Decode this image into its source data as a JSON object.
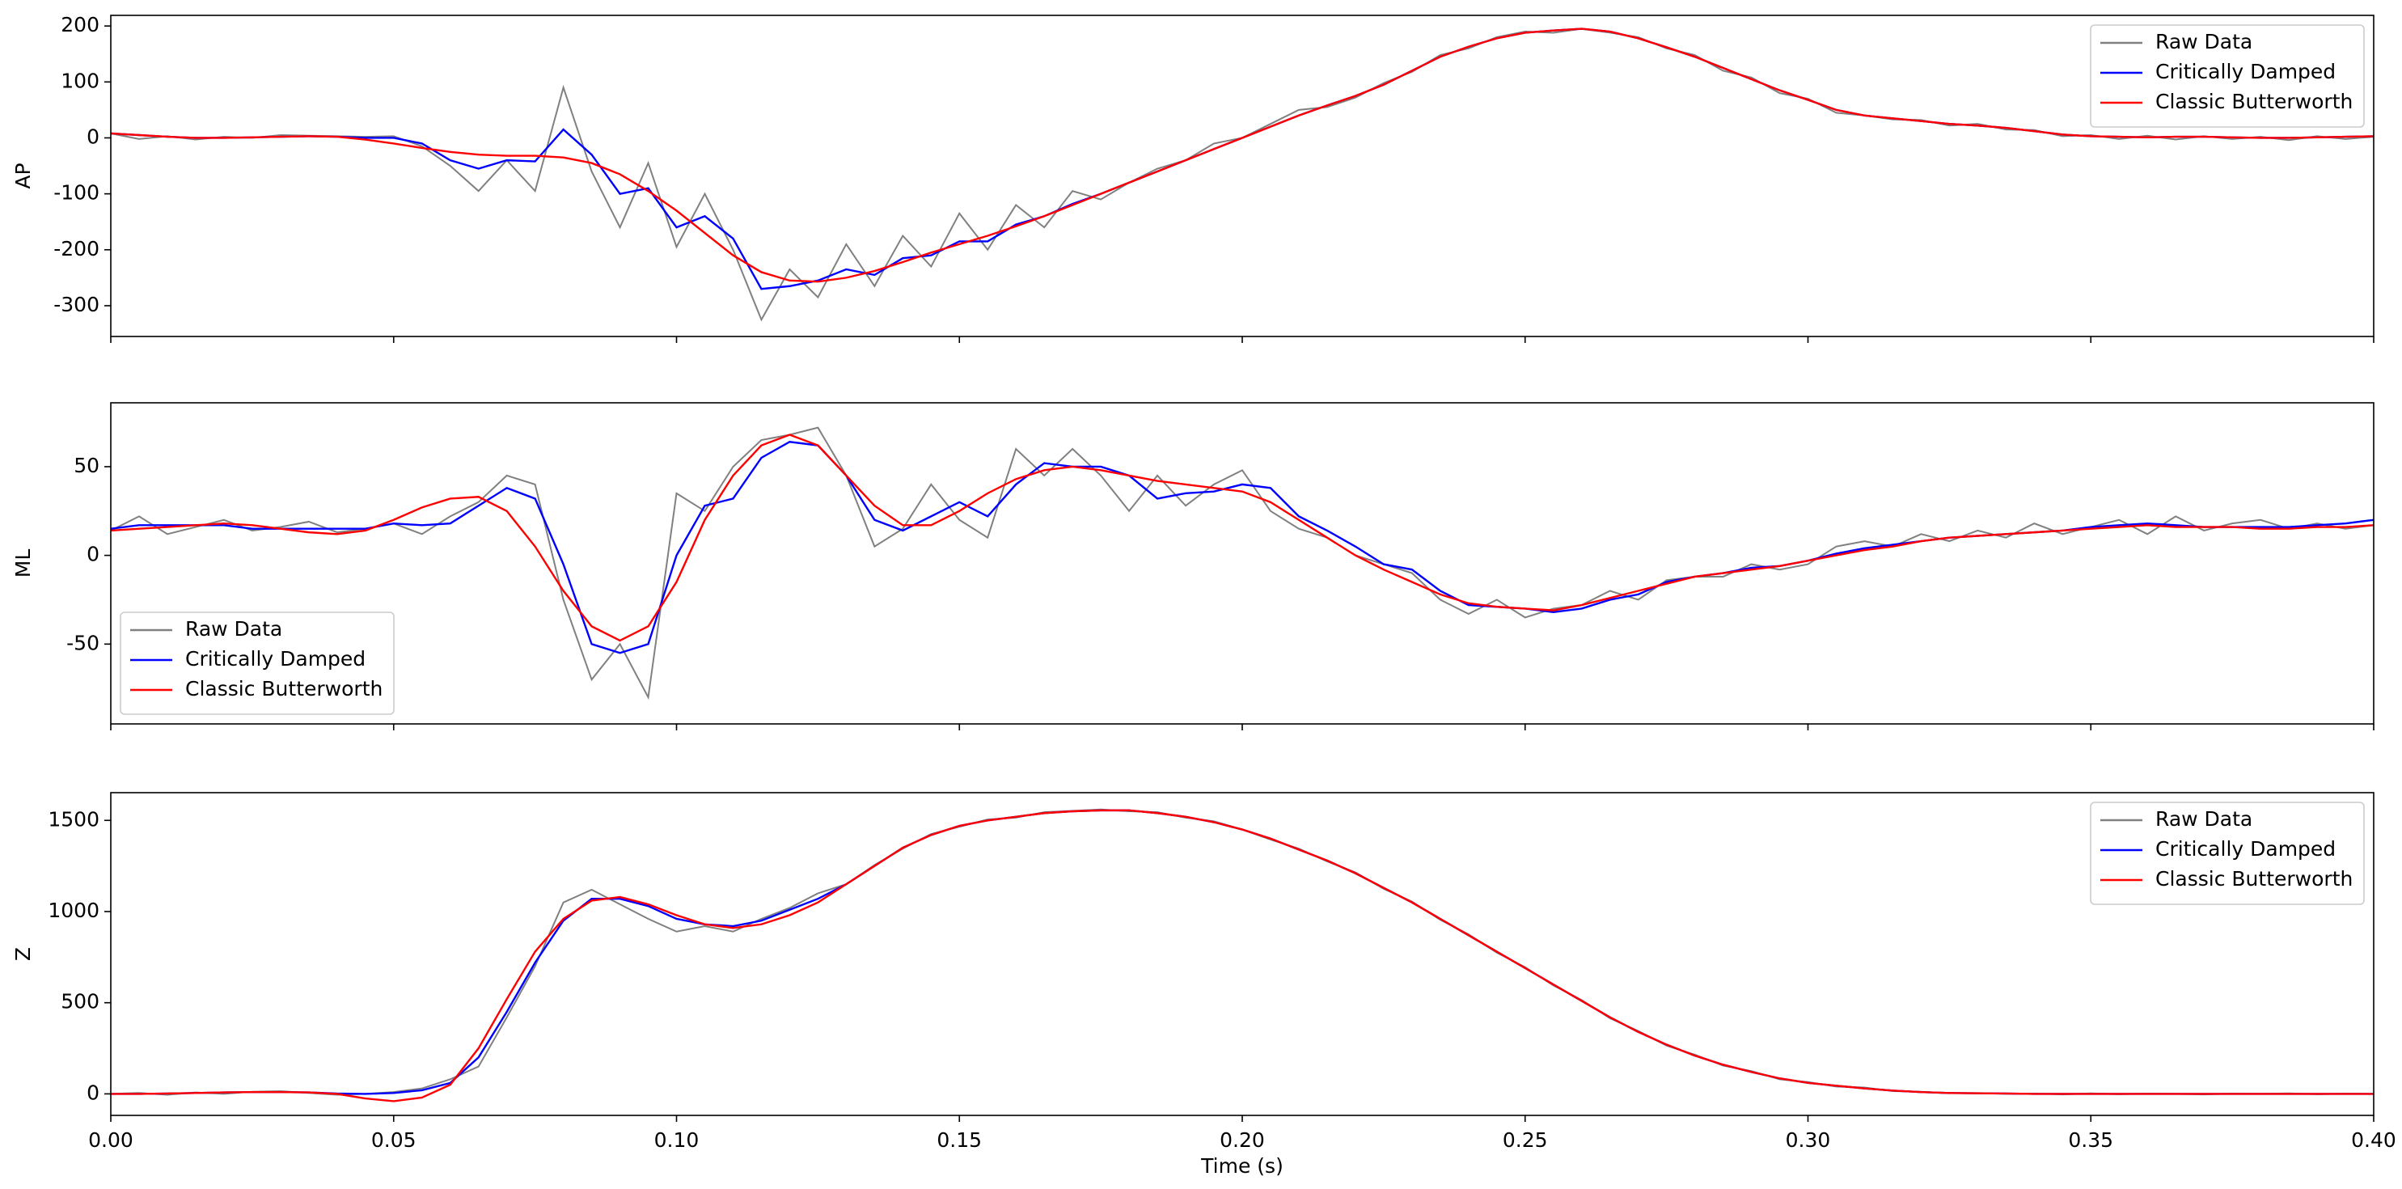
{
  "chart_data": [
    {
      "type": "line",
      "ylabel": "AP",
      "legend": "upper right",
      "xlim": [
        0,
        0.4
      ],
      "ylim": [
        -355,
        219
      ],
      "xticks": [
        0,
        0.05,
        0.1,
        0.15,
        0.2,
        0.25,
        0.3,
        0.35,
        0.4
      ],
      "yticks": [
        -300,
        -200,
        -100,
        0,
        100,
        200
      ],
      "x": [
        0,
        0.005,
        0.01,
        0.015,
        0.02,
        0.025,
        0.03,
        0.035,
        0.04,
        0.045,
        0.05,
        0.055,
        0.06,
        0.065,
        0.07,
        0.075,
        0.08,
        0.085,
        0.09,
        0.095,
        0.1,
        0.105,
        0.11,
        0.115,
        0.12,
        0.125,
        0.13,
        0.135,
        0.14,
        0.145,
        0.15,
        0.155,
        0.16,
        0.165,
        0.17,
        0.175,
        0.18,
        0.185,
        0.19,
        0.195,
        0.2,
        0.205,
        0.21,
        0.215,
        0.22,
        0.225,
        0.23,
        0.235,
        0.24,
        0.245,
        0.25,
        0.255,
        0.26,
        0.265,
        0.27,
        0.275,
        0.28,
        0.285,
        0.29,
        0.295,
        0.3,
        0.305,
        0.31,
        0.315,
        0.32,
        0.325,
        0.33,
        0.335,
        0.34,
        0.345,
        0.35,
        0.355,
        0.36,
        0.365,
        0.37,
        0.375,
        0.38,
        0.385,
        0.39,
        0.395,
        0.4
      ],
      "series": [
        {
          "name": "Raw Data",
          "color": "#808080",
          "values": [
            8,
            -2,
            3,
            -3,
            2,
            0,
            5,
            4,
            3,
            2,
            3,
            -15,
            -50,
            -95,
            -40,
            -95,
            90,
            -60,
            -160,
            -45,
            -195,
            -100,
            -200,
            -325,
            -235,
            -285,
            -190,
            -265,
            -175,
            -230,
            -135,
            -200,
            -120,
            -160,
            -95,
            -110,
            -80,
            -55,
            -40,
            -10,
            0,
            25,
            50,
            55,
            72,
            98,
            118,
            148,
            160,
            180,
            190,
            188,
            195,
            188,
            180,
            160,
            148,
            120,
            108,
            80,
            70,
            45,
            40,
            33,
            32,
            22,
            25,
            15,
            14,
            3,
            5,
            -2,
            4,
            -3,
            3,
            -2,
            2,
            -4,
            3,
            -2,
            2
          ]
        },
        {
          "name": "Critically Damped",
          "color": "#0000ff",
          "values": [
            8,
            5,
            2,
            0,
            0,
            1,
            2,
            3,
            2,
            0,
            0,
            -10,
            -40,
            -55,
            -40,
            -42,
            15,
            -30,
            -100,
            -90,
            -160,
            -140,
            -180,
            -270,
            -265,
            -255,
            -235,
            -245,
            -215,
            -210,
            -185,
            -185,
            -155,
            -140,
            -118,
            -100,
            -80,
            -60,
            -40,
            -20,
            0,
            20,
            40,
            58,
            75,
            95,
            120,
            145,
            163,
            178,
            188,
            192,
            195,
            190,
            178,
            162,
            145,
            125,
            105,
            85,
            68,
            50,
            40,
            35,
            30,
            25,
            22,
            18,
            12,
            6,
            3,
            2,
            1,
            2,
            2,
            1,
            0,
            0,
            1,
            2,
            3
          ]
        },
        {
          "name": "Classic Butterworth",
          "color": "#ff0000",
          "values": [
            8,
            5,
            2,
            0,
            0,
            1,
            2,
            3,
            2,
            -3,
            -10,
            -18,
            -25,
            -30,
            -32,
            -32,
            -35,
            -45,
            -65,
            -95,
            -130,
            -170,
            -210,
            -240,
            -255,
            -257,
            -250,
            -238,
            -222,
            -205,
            -190,
            -175,
            -158,
            -140,
            -120,
            -100,
            -80,
            -60,
            -40,
            -20,
            0,
            20,
            40,
            58,
            75,
            95,
            120,
            145,
            163,
            178,
            188,
            192,
            195,
            190,
            178,
            162,
            145,
            125,
            105,
            85,
            68,
            50,
            40,
            35,
            30,
            25,
            22,
            18,
            12,
            6,
            3,
            2,
            1,
            2,
            2,
            1,
            0,
            0,
            1,
            2,
            3
          ]
        }
      ]
    },
    {
      "type": "line",
      "ylabel": "ML",
      "legend": "lower left",
      "xlim": [
        0,
        0.4
      ],
      "ylim": [
        -95,
        86
      ],
      "xticks": [
        0,
        0.05,
        0.1,
        0.15,
        0.2,
        0.25,
        0.3,
        0.35,
        0.4
      ],
      "yticks": [
        -50,
        0,
        50
      ],
      "x": [
        0,
        0.005,
        0.01,
        0.015,
        0.02,
        0.025,
        0.03,
        0.035,
        0.04,
        0.045,
        0.05,
        0.055,
        0.06,
        0.065,
        0.07,
        0.075,
        0.08,
        0.085,
        0.09,
        0.095,
        0.1,
        0.105,
        0.11,
        0.115,
        0.12,
        0.125,
        0.13,
        0.135,
        0.14,
        0.145,
        0.15,
        0.155,
        0.16,
        0.165,
        0.17,
        0.175,
        0.18,
        0.185,
        0.19,
        0.195,
        0.2,
        0.205,
        0.21,
        0.215,
        0.22,
        0.225,
        0.23,
        0.235,
        0.24,
        0.245,
        0.25,
        0.255,
        0.26,
        0.265,
        0.27,
        0.275,
        0.28,
        0.285,
        0.29,
        0.295,
        0.3,
        0.305,
        0.31,
        0.315,
        0.32,
        0.325,
        0.33,
        0.335,
        0.34,
        0.345,
        0.35,
        0.355,
        0.36,
        0.365,
        0.37,
        0.375,
        0.38,
        0.385,
        0.39,
        0.395,
        0.4
      ],
      "series": [
        {
          "name": "Raw Data",
          "color": "#808080",
          "values": [
            14,
            22,
            12,
            16,
            20,
            14,
            16,
            19,
            13,
            15,
            18,
            12,
            22,
            30,
            45,
            40,
            -25,
            -70,
            -50,
            -80,
            35,
            25,
            50,
            65,
            68,
            72,
            45,
            5,
            15,
            40,
            20,
            10,
            60,
            45,
            60,
            45,
            25,
            45,
            28,
            40,
            48,
            25,
            15,
            10,
            0,
            -5,
            -10,
            -25,
            -33,
            -25,
            -35,
            -30,
            -28,
            -20,
            -25,
            -14,
            -12,
            -12,
            -5,
            -8,
            -5,
            5,
            8,
            5,
            12,
            8,
            14,
            10,
            18,
            12,
            16,
            20,
            12,
            22,
            14,
            18,
            20,
            15,
            18,
            15,
            17
          ]
        },
        {
          "name": "Critically Damped",
          "color": "#0000ff",
          "values": [
            15,
            17,
            17,
            17,
            17,
            15,
            15,
            15,
            15,
            15,
            18,
            17,
            18,
            28,
            38,
            32,
            -5,
            -50,
            -55,
            -50,
            0,
            28,
            32,
            55,
            64,
            62,
            45,
            20,
            14,
            22,
            30,
            22,
            40,
            52,
            50,
            50,
            45,
            32,
            35,
            36,
            40,
            38,
            22,
            14,
            5,
            -5,
            -8,
            -20,
            -28,
            -29,
            -30,
            -32,
            -30,
            -25,
            -22,
            -15,
            -12,
            -10,
            -7,
            -6,
            -3,
            1,
            4,
            6,
            8,
            10,
            11,
            12,
            13,
            14,
            16,
            17,
            18,
            17,
            16,
            16,
            16,
            16,
            17,
            18,
            20
          ]
        },
        {
          "name": "Classic Butterworth",
          "color": "#ff0000",
          "values": [
            14,
            15,
            16,
            17,
            18,
            17,
            15,
            13,
            12,
            14,
            20,
            27,
            32,
            33,
            25,
            5,
            -20,
            -40,
            -48,
            -40,
            -15,
            20,
            45,
            62,
            68,
            62,
            45,
            28,
            17,
            17,
            25,
            35,
            43,
            48,
            50,
            48,
            45,
            42,
            40,
            38,
            36,
            30,
            20,
            10,
            0,
            -8,
            -15,
            -22,
            -27,
            -29,
            -30,
            -31,
            -28,
            -24,
            -20,
            -16,
            -12,
            -10,
            -8,
            -6,
            -3,
            0,
            3,
            5,
            8,
            10,
            11,
            12,
            13,
            14,
            15,
            16,
            17,
            16,
            16,
            16,
            15,
            15,
            16,
            16,
            17
          ]
        }
      ]
    },
    {
      "type": "line",
      "ylabel": "Z",
      "xlabel": "Time (s)",
      "legend": "upper right",
      "xlim": [
        0,
        0.4
      ],
      "ylim": [
        -118,
        1652
      ],
      "xticks": [
        {
          "value": 0,
          "label": "0.00"
        },
        {
          "value": 0.05,
          "label": "0.05"
        },
        {
          "value": 0.1,
          "label": "0.10"
        },
        {
          "value": 0.15,
          "label": "0.15"
        },
        {
          "value": 0.2,
          "label": "0.20"
        },
        {
          "value": 0.25,
          "label": "0.25"
        },
        {
          "value": 0.3,
          "label": "0.30"
        },
        {
          "value": 0.35,
          "label": "0.35"
        },
        {
          "value": 0.4,
          "label": "0.40"
        }
      ],
      "yticks": [
        0,
        500,
        1000,
        1500
      ],
      "x": [
        0,
        0.005,
        0.01,
        0.015,
        0.02,
        0.025,
        0.03,
        0.035,
        0.04,
        0.045,
        0.05,
        0.055,
        0.06,
        0.065,
        0.07,
        0.075,
        0.08,
        0.085,
        0.09,
        0.095,
        0.1,
        0.105,
        0.11,
        0.115,
        0.12,
        0.125,
        0.13,
        0.135,
        0.14,
        0.145,
        0.15,
        0.155,
        0.16,
        0.165,
        0.17,
        0.175,
        0.18,
        0.185,
        0.19,
        0.195,
        0.2,
        0.205,
        0.21,
        0.215,
        0.22,
        0.225,
        0.23,
        0.235,
        0.24,
        0.245,
        0.25,
        0.255,
        0.26,
        0.265,
        0.27,
        0.275,
        0.28,
        0.285,
        0.29,
        0.295,
        0.3,
        0.305,
        0.31,
        0.315,
        0.32,
        0.325,
        0.33,
        0.335,
        0.34,
        0.345,
        0.35,
        0.355,
        0.36,
        0.365,
        0.37,
        0.375,
        0.38,
        0.385,
        0.39,
        0.395,
        0.4
      ],
      "series": [
        {
          "name": "Raw Data",
          "color": "#808080",
          "values": [
            0,
            5,
            -5,
            8,
            0,
            12,
            15,
            5,
            -5,
            0,
            10,
            30,
            80,
            150,
            420,
            700,
            1050,
            1120,
            1040,
            960,
            890,
            920,
            890,
            960,
            1020,
            1100,
            1150,
            1255,
            1345,
            1425,
            1465,
            1505,
            1515,
            1545,
            1552,
            1560,
            1550,
            1545,
            1515,
            1495,
            1450,
            1395,
            1345,
            1275,
            1215,
            1125,
            1055,
            955,
            875,
            775,
            695,
            595,
            515,
            415,
            345,
            265,
            215,
            155,
            125,
            80,
            65,
            40,
            35,
            15,
            12,
            3,
            5,
            0,
            2,
            -3,
            3,
            -2,
            2,
            0,
            -3,
            2,
            0,
            3,
            -2,
            2,
            0
          ]
        },
        {
          "name": "Critically Damped",
          "color": "#0000ff",
          "values": [
            0,
            0,
            2,
            5,
            8,
            10,
            10,
            8,
            2,
            0,
            5,
            20,
            60,
            200,
            450,
            720,
            950,
            1070,
            1070,
            1030,
            960,
            930,
            920,
            950,
            1010,
            1070,
            1150,
            1250,
            1350,
            1420,
            1470,
            1500,
            1520,
            1540,
            1550,
            1555,
            1555,
            1540,
            1520,
            1490,
            1450,
            1400,
            1340,
            1280,
            1210,
            1130,
            1050,
            960,
            870,
            780,
            690,
            600,
            510,
            420,
            340,
            270,
            210,
            160,
            120,
            85,
            60,
            45,
            30,
            18,
            10,
            5,
            3,
            2,
            0,
            0,
            0,
            0,
            0,
            0,
            0,
            0,
            0,
            0,
            0,
            0,
            0
          ]
        },
        {
          "name": "Classic Butterworth",
          "color": "#ff0000",
          "values": [
            0,
            0,
            2,
            5,
            8,
            10,
            10,
            8,
            0,
            -25,
            -40,
            -20,
            50,
            250,
            520,
            780,
            960,
            1060,
            1080,
            1040,
            980,
            930,
            910,
            930,
            980,
            1050,
            1150,
            1250,
            1350,
            1420,
            1470,
            1500,
            1520,
            1540,
            1550,
            1555,
            1555,
            1540,
            1520,
            1490,
            1450,
            1400,
            1340,
            1280,
            1210,
            1130,
            1050,
            960,
            870,
            780,
            690,
            600,
            510,
            420,
            340,
            270,
            210,
            160,
            120,
            85,
            60,
            45,
            30,
            18,
            10,
            5,
            3,
            2,
            0,
            0,
            0,
            0,
            0,
            0,
            0,
            0,
            0,
            0,
            0,
            0,
            0
          ]
        }
      ]
    }
  ]
}
